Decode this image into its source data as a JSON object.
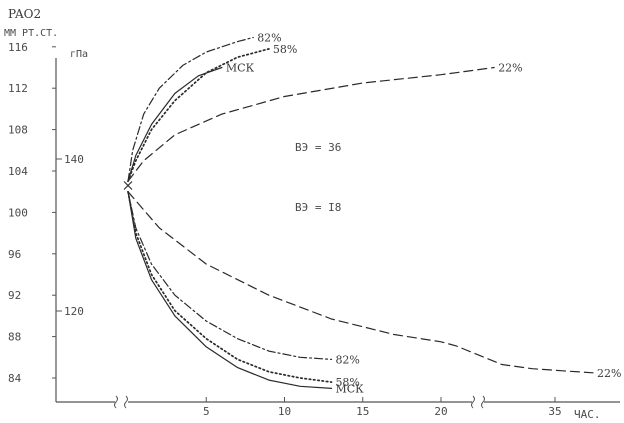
{
  "chart_data": {
    "type": "line",
    "title": "",
    "ylabel_main": "PAO2",
    "ylabel_unit_left": "ММ РТ.СТ.",
    "ylabel_unit_right": "гПа",
    "xlabel": "ЧАС.",
    "x_ticks": [
      "5",
      "10",
      "15",
      "20",
      "35"
    ],
    "y_ticks_mmHg": [
      "116",
      "112",
      "108",
      "104",
      "100",
      "96",
      "92",
      "88",
      "84"
    ],
    "y_ticks_hPa": [
      "140",
      "120"
    ],
    "annotations": {
      "ve36": "ВЭ = 36",
      "ve18": "ВЭ = I8"
    },
    "x_axis_break": true,
    "ylim": [
      82,
      117
    ],
    "colors": {
      "line": "#2a2a2a",
      "text": "#3a3a3a"
    },
    "series": [
      {
        "name": "82%",
        "group": "ВЭ = 36",
        "style": "dash-dot",
        "label": "82%",
        "points": [
          [
            0,
            103
          ],
          [
            0.3,
            106
          ],
          [
            1,
            109.5
          ],
          [
            2,
            112
          ],
          [
            3.5,
            114.2
          ],
          [
            5,
            115.5
          ],
          [
            7,
            116.5
          ],
          [
            8,
            116.9
          ]
        ]
      },
      {
        "name": "МСК",
        "group": "ВЭ = 36",
        "style": "solid",
        "label": "МСК",
        "points": [
          [
            0,
            103
          ],
          [
            0.5,
            105.5
          ],
          [
            1.5,
            108.5
          ],
          [
            3,
            111.5
          ],
          [
            4.5,
            113.2
          ],
          [
            6,
            114
          ]
        ]
      },
      {
        "name": "58%",
        "group": "ВЭ = 36",
        "style": "dotted",
        "label": "58%",
        "points": [
          [
            0,
            103
          ],
          [
            0.5,
            105
          ],
          [
            1.5,
            108
          ],
          [
            3,
            110.8
          ],
          [
            5,
            113.5
          ],
          [
            7,
            115
          ],
          [
            9,
            115.8
          ]
        ]
      },
      {
        "name": "22%",
        "group": "ВЭ = 36",
        "style": "dashed",
        "label": "22%",
        "points": [
          [
            0,
            103
          ],
          [
            1,
            105
          ],
          [
            3,
            107.5
          ],
          [
            6,
            109.5
          ],
          [
            10,
            111.2
          ],
          [
            15,
            112.5
          ],
          [
            20,
            113.3
          ],
          [
            24,
            113.7
          ],
          [
            27,
            114
          ]
        ]
      },
      {
        "name": "82%",
        "group": "ВЭ = I8",
        "style": "dash-dot",
        "label": "82%",
        "points": [
          [
            0,
            102
          ],
          [
            0.5,
            98.5
          ],
          [
            1.5,
            95
          ],
          [
            3,
            92
          ],
          [
            5,
            89.5
          ],
          [
            7,
            87.8
          ],
          [
            9,
            86.6
          ],
          [
            11,
            86
          ],
          [
            13,
            85.8
          ]
        ]
      },
      {
        "name": "58%",
        "group": "ВЭ = I8",
        "style": "dotted",
        "label": "58%",
        "points": [
          [
            0,
            102
          ],
          [
            0.5,
            98
          ],
          [
            1.5,
            94
          ],
          [
            3,
            90.5
          ],
          [
            5,
            87.8
          ],
          [
            7,
            85.8
          ],
          [
            9,
            84.6
          ],
          [
            11,
            84
          ],
          [
            13,
            83.6
          ]
        ]
      },
      {
        "name": "МСК",
        "group": "ВЭ = I8",
        "style": "solid",
        "label": "МСК",
        "points": [
          [
            0,
            102
          ],
          [
            0.5,
            97.5
          ],
          [
            1.5,
            93.5
          ],
          [
            3,
            90
          ],
          [
            5,
            87
          ],
          [
            7,
            85
          ],
          [
            9,
            83.8
          ],
          [
            11,
            83.2
          ],
          [
            13,
            83
          ]
        ]
      },
      {
        "name": "22%",
        "group": "ВЭ = I8",
        "style": "dashed",
        "label": "22%",
        "points": [
          [
            0,
            102
          ],
          [
            2,
            98.5
          ],
          [
            5,
            95
          ],
          [
            9,
            92
          ],
          [
            13,
            89.7
          ],
          [
            17,
            88.2
          ],
          [
            20,
            87.5
          ],
          [
            22,
            87.1
          ],
          [
            23,
            86.8
          ],
          [
            28,
            85.3
          ],
          [
            32,
            84.9
          ],
          [
            36,
            84.7
          ],
          [
            40,
            84.5
          ]
        ]
      }
    ]
  }
}
